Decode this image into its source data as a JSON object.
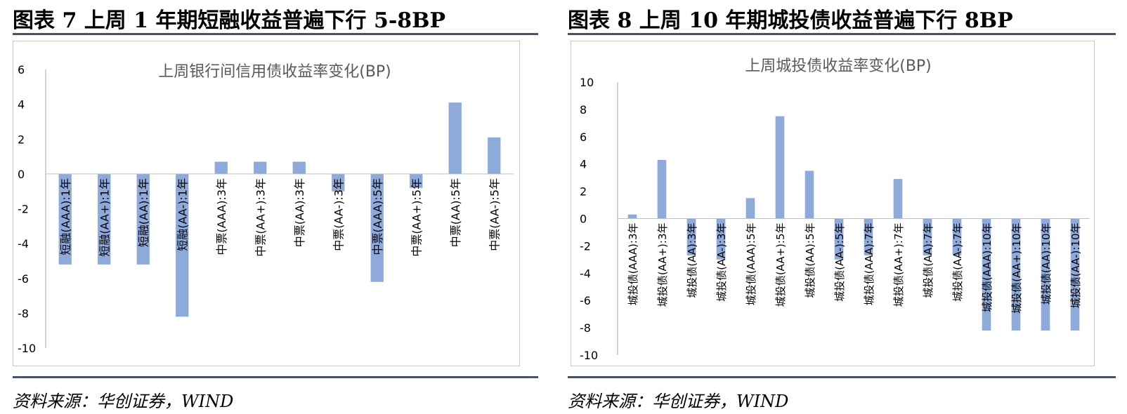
{
  "left": {
    "heading": "图表 7  上周 1 年期短融收益普遍下行 5-8BP",
    "source": "资料来源：华创证券，WIND",
    "chart_data": {
      "type": "bar",
      "title": "上周银行间信用债收益率变化(BP)",
      "xlabel": "",
      "ylabel": "",
      "ylim": [
        -10,
        6
      ],
      "yticks": [
        6,
        4,
        2,
        0,
        -2,
        -4,
        -6,
        -8,
        -10
      ],
      "categories": [
        "短融(AAA):1年",
        "短融(AA+):1年",
        "短融(AA):1年",
        "短融(AA-):1年",
        "中票(AAA):3年",
        "中票(AA+):3年",
        "中票(AA):3年",
        "中票(AA-):3年",
        "中票(AAA):5年",
        "中票(AA+):5年",
        "中票(AA):5年",
        "中票(AA-):5年"
      ],
      "values": [
        -5.2,
        -5.2,
        -5.2,
        -8.2,
        0.7,
        0.7,
        0.7,
        -1.0,
        -6.2,
        -0.8,
        4.1,
        2.1
      ],
      "grid": false,
      "bar_color": "#8eaadb"
    }
  },
  "right": {
    "heading": "图表 8    上周 10 年期城投债收益普遍下行 8BP",
    "source": "资料来源：华创证券，WIND",
    "chart_data": {
      "type": "bar",
      "title": "上周城投债收益率变化(BP)",
      "xlabel": "",
      "ylabel": "",
      "ylim": [
        -10,
        10
      ],
      "yticks": [
        10,
        8,
        6,
        4,
        2,
        0,
        -2,
        -4,
        -6,
        -8,
        -10
      ],
      "categories": [
        "城投债(AAA):3年",
        "城投债(AA+):3年",
        "城投债(AA):3年",
        "城投债(AA-):3年",
        "城投债(AAA):5年",
        "城投债(AA+):5年",
        "城投债(AA):5年",
        "城投债(AA-):5年",
        "城投债(AAA):7年",
        "城投债(AA+):7年",
        "城投债(AA):7年",
        "城投债(AA-):7年",
        "城投债(AAA):10年",
        "城投债(AA+):10年",
        "城投债(AA):10年",
        "城投债(AA-):10年"
      ],
      "values": [
        0.3,
        4.3,
        -2.7,
        -3.0,
        1.5,
        7.5,
        3.5,
        -3.0,
        -2.7,
        2.9,
        -2.7,
        -2.7,
        -8.2,
        -8.2,
        -8.2,
        -8.2
      ],
      "grid": false,
      "bar_color": "#8eaadb"
    }
  }
}
